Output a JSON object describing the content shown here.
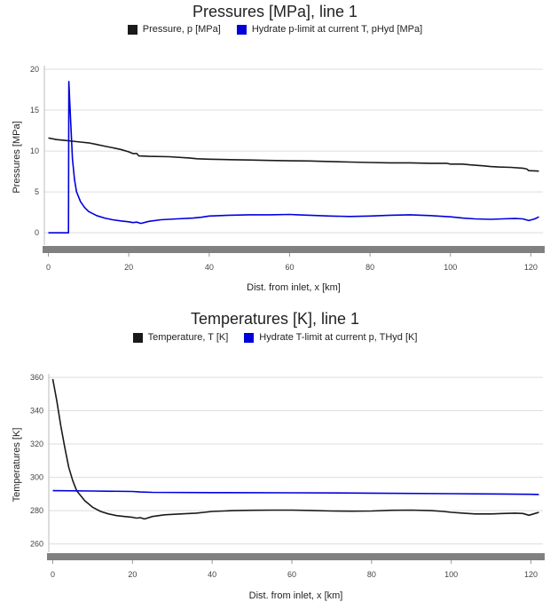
{
  "chart_data": [
    {
      "type": "line",
      "title": "Pressures [MPa], line 1",
      "xlabel": "Dist. from inlet, x [km]",
      "ylabel": "Pressures [MPa]",
      "xlim": [
        -1,
        123
      ],
      "ylim": [
        -1.5,
        20
      ],
      "xticks": [
        0,
        20,
        40,
        60,
        80,
        100,
        120
      ],
      "yticks": [
        0,
        5,
        10,
        15,
        20
      ],
      "grid": "horizontal",
      "legend": "top-center",
      "series": [
        {
          "name": "Pressure, p [MPa]",
          "color": "#1a1a1a",
          "points": [
            [
              0,
              11.6
            ],
            [
              2,
              11.4
            ],
            [
              4,
              11.3
            ],
            [
              6,
              11.2
            ],
            [
              8,
              11.1
            ],
            [
              10,
              11.0
            ],
            [
              12,
              10.8
            ],
            [
              14,
              10.6
            ],
            [
              16,
              10.4
            ],
            [
              18,
              10.2
            ],
            [
              20,
              9.9
            ],
            [
              21,
              9.7
            ],
            [
              22,
              9.7
            ],
            [
              22.5,
              9.4
            ],
            [
              25,
              9.35
            ],
            [
              30,
              9.3
            ],
            [
              35,
              9.15
            ],
            [
              37,
              9.05
            ],
            [
              40,
              9.0
            ],
            [
              45,
              8.95
            ],
            [
              50,
              8.9
            ],
            [
              55,
              8.85
            ],
            [
              60,
              8.8
            ],
            [
              65,
              8.78
            ],
            [
              70,
              8.72
            ],
            [
              75,
              8.65
            ],
            [
              80,
              8.6
            ],
            [
              85,
              8.55
            ],
            [
              90,
              8.55
            ],
            [
              95,
              8.5
            ],
            [
              99,
              8.5
            ],
            [
              100,
              8.4
            ],
            [
              103,
              8.4
            ],
            [
              105,
              8.3
            ],
            [
              108,
              8.2
            ],
            [
              110,
              8.1
            ],
            [
              112,
              8.05
            ],
            [
              115,
              8.0
            ],
            [
              118,
              7.9
            ],
            [
              119,
              7.8
            ],
            [
              119.5,
              7.6
            ],
            [
              122,
              7.55
            ]
          ]
        },
        {
          "name": "Hydrate p-limit at current T, pHyd [MPa]",
          "color": "#0000dd",
          "points": [
            [
              0,
              0
            ],
            [
              5,
              0
            ],
            [
              5.1,
              18.5
            ],
            [
              5.5,
              14.0
            ],
            [
              6,
              9.0
            ],
            [
              6.5,
              6.5
            ],
            [
              7,
              5.0
            ],
            [
              8,
              3.8
            ],
            [
              9,
              3.1
            ],
            [
              10,
              2.6
            ],
            [
              12,
              2.1
            ],
            [
              14,
              1.8
            ],
            [
              16,
              1.6
            ],
            [
              18,
              1.45
            ],
            [
              20,
              1.35
            ],
            [
              21,
              1.25
            ],
            [
              22,
              1.3
            ],
            [
              23,
              1.15
            ],
            [
              25,
              1.4
            ],
            [
              28,
              1.6
            ],
            [
              32,
              1.7
            ],
            [
              36,
              1.8
            ],
            [
              38,
              1.9
            ],
            [
              40,
              2.05
            ],
            [
              45,
              2.15
            ],
            [
              50,
              2.2
            ],
            [
              55,
              2.2
            ],
            [
              60,
              2.25
            ],
            [
              62,
              2.2
            ],
            [
              65,
              2.15
            ],
            [
              70,
              2.05
            ],
            [
              75,
              2.0
            ],
            [
              80,
              2.05
            ],
            [
              85,
              2.15
            ],
            [
              90,
              2.2
            ],
            [
              95,
              2.1
            ],
            [
              100,
              1.95
            ],
            [
              103,
              1.8
            ],
            [
              106,
              1.7
            ],
            [
              110,
              1.65
            ],
            [
              113,
              1.7
            ],
            [
              116,
              1.75
            ],
            [
              118,
              1.7
            ],
            [
              119.5,
              1.5
            ],
            [
              121,
              1.7
            ],
            [
              122,
              1.95
            ]
          ]
        }
      ]
    },
    {
      "type": "line",
      "title": "Temperatures [K], line 1",
      "xlabel": "Dist. from inlet, x [km]",
      "ylabel": "Temperatures [K]",
      "xlim": [
        -1,
        123
      ],
      "ylim": [
        255,
        360
      ],
      "xticks": [
        0,
        20,
        40,
        60,
        80,
        100,
        120
      ],
      "yticks": [
        260,
        280,
        300,
        320,
        340,
        360
      ],
      "grid": "horizontal",
      "legend": "top-center",
      "series": [
        {
          "name": "Temperature, T [K]",
          "color": "#1a1a1a",
          "points": [
            [
              0,
              359
            ],
            [
              1,
              346
            ],
            [
              2,
              331
            ],
            [
              3,
              318
            ],
            [
              4,
              306
            ],
            [
              5,
              298
            ],
            [
              6,
              292
            ],
            [
              8,
              286
            ],
            [
              10,
              282
            ],
            [
              12,
              279.5
            ],
            [
              14,
              278
            ],
            [
              16,
              277
            ],
            [
              18,
              276.5
            ],
            [
              20,
              276
            ],
            [
              21,
              275.5
            ],
            [
              22,
              275.8
            ],
            [
              23,
              275
            ],
            [
              25,
              276.5
            ],
            [
              28,
              277.5
            ],
            [
              32,
              278
            ],
            [
              36,
              278.5
            ],
            [
              38,
              279
            ],
            [
              40,
              279.5
            ],
            [
              45,
              280
            ],
            [
              50,
              280.2
            ],
            [
              55,
              280.3
            ],
            [
              60,
              280.3
            ],
            [
              65,
              280.1
            ],
            [
              70,
              279.8
            ],
            [
              75,
              279.7
            ],
            [
              80,
              279.8
            ],
            [
              85,
              280.2
            ],
            [
              90,
              280.3
            ],
            [
              95,
              280
            ],
            [
              98,
              279.5
            ],
            [
              100,
              279
            ],
            [
              103,
              278.5
            ],
            [
              106,
              278
            ],
            [
              110,
              278
            ],
            [
              113,
              278.3
            ],
            [
              116,
              278.5
            ],
            [
              118,
              278.3
            ],
            [
              119.5,
              277.2
            ],
            [
              121,
              278.3
            ],
            [
              122,
              279
            ]
          ]
        },
        {
          "name": "Hydrate T-limit at current p, THyd [K]",
          "color": "#0000dd",
          "points": [
            [
              0,
              292
            ],
            [
              10,
              291.8
            ],
            [
              20,
              291.5
            ],
            [
              22,
              291.2
            ],
            [
              25,
              291
            ],
            [
              40,
              290.8
            ],
            [
              60,
              290.7
            ],
            [
              80,
              290.5
            ],
            [
              100,
              290.2
            ],
            [
              110,
              290
            ],
            [
              120,
              289.8
            ],
            [
              122,
              289.7
            ]
          ]
        }
      ]
    }
  ]
}
